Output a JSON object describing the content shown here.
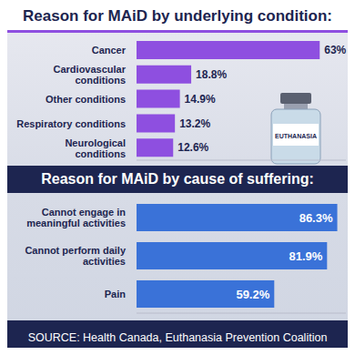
{
  "source": "SOURCE: Health Canada, Euthanasia Prevention Coalition",
  "illustration_label": "EUTHANASIA",
  "chart_data": [
    {
      "type": "bar",
      "title": "Reason for MAiD by underlying condition:",
      "orientation": "horizontal",
      "categories": [
        "Cancer",
        "Cardiovascular conditions",
        "Other conditions",
        "Respiratory conditions",
        "Neurological conditions"
      ],
      "values": [
        63,
        18.8,
        14.9,
        13.2,
        12.6
      ],
      "value_labels": [
        "63%",
        "18.8%",
        "14.9%",
        "13.2%",
        "12.6%"
      ],
      "color": "#8e4fe0",
      "xlim": [
        0,
        72
      ],
      "data_labels": true,
      "tick_labels": "y"
    },
    {
      "type": "bar",
      "title": "Reason for MAiD by cause of suffering:",
      "orientation": "horizontal",
      "categories": [
        "Cannot engage in meaningful activities",
        "Cannot perform daily activities",
        "Pain"
      ],
      "values": [
        86.3,
        81.9,
        59.2
      ],
      "value_labels": [
        "86.3%",
        "81.9%",
        "59.2%"
      ],
      "color": "#3a72d8",
      "xlim": [
        0,
        90
      ],
      "data_labels": true,
      "tick_labels": "y"
    }
  ]
}
